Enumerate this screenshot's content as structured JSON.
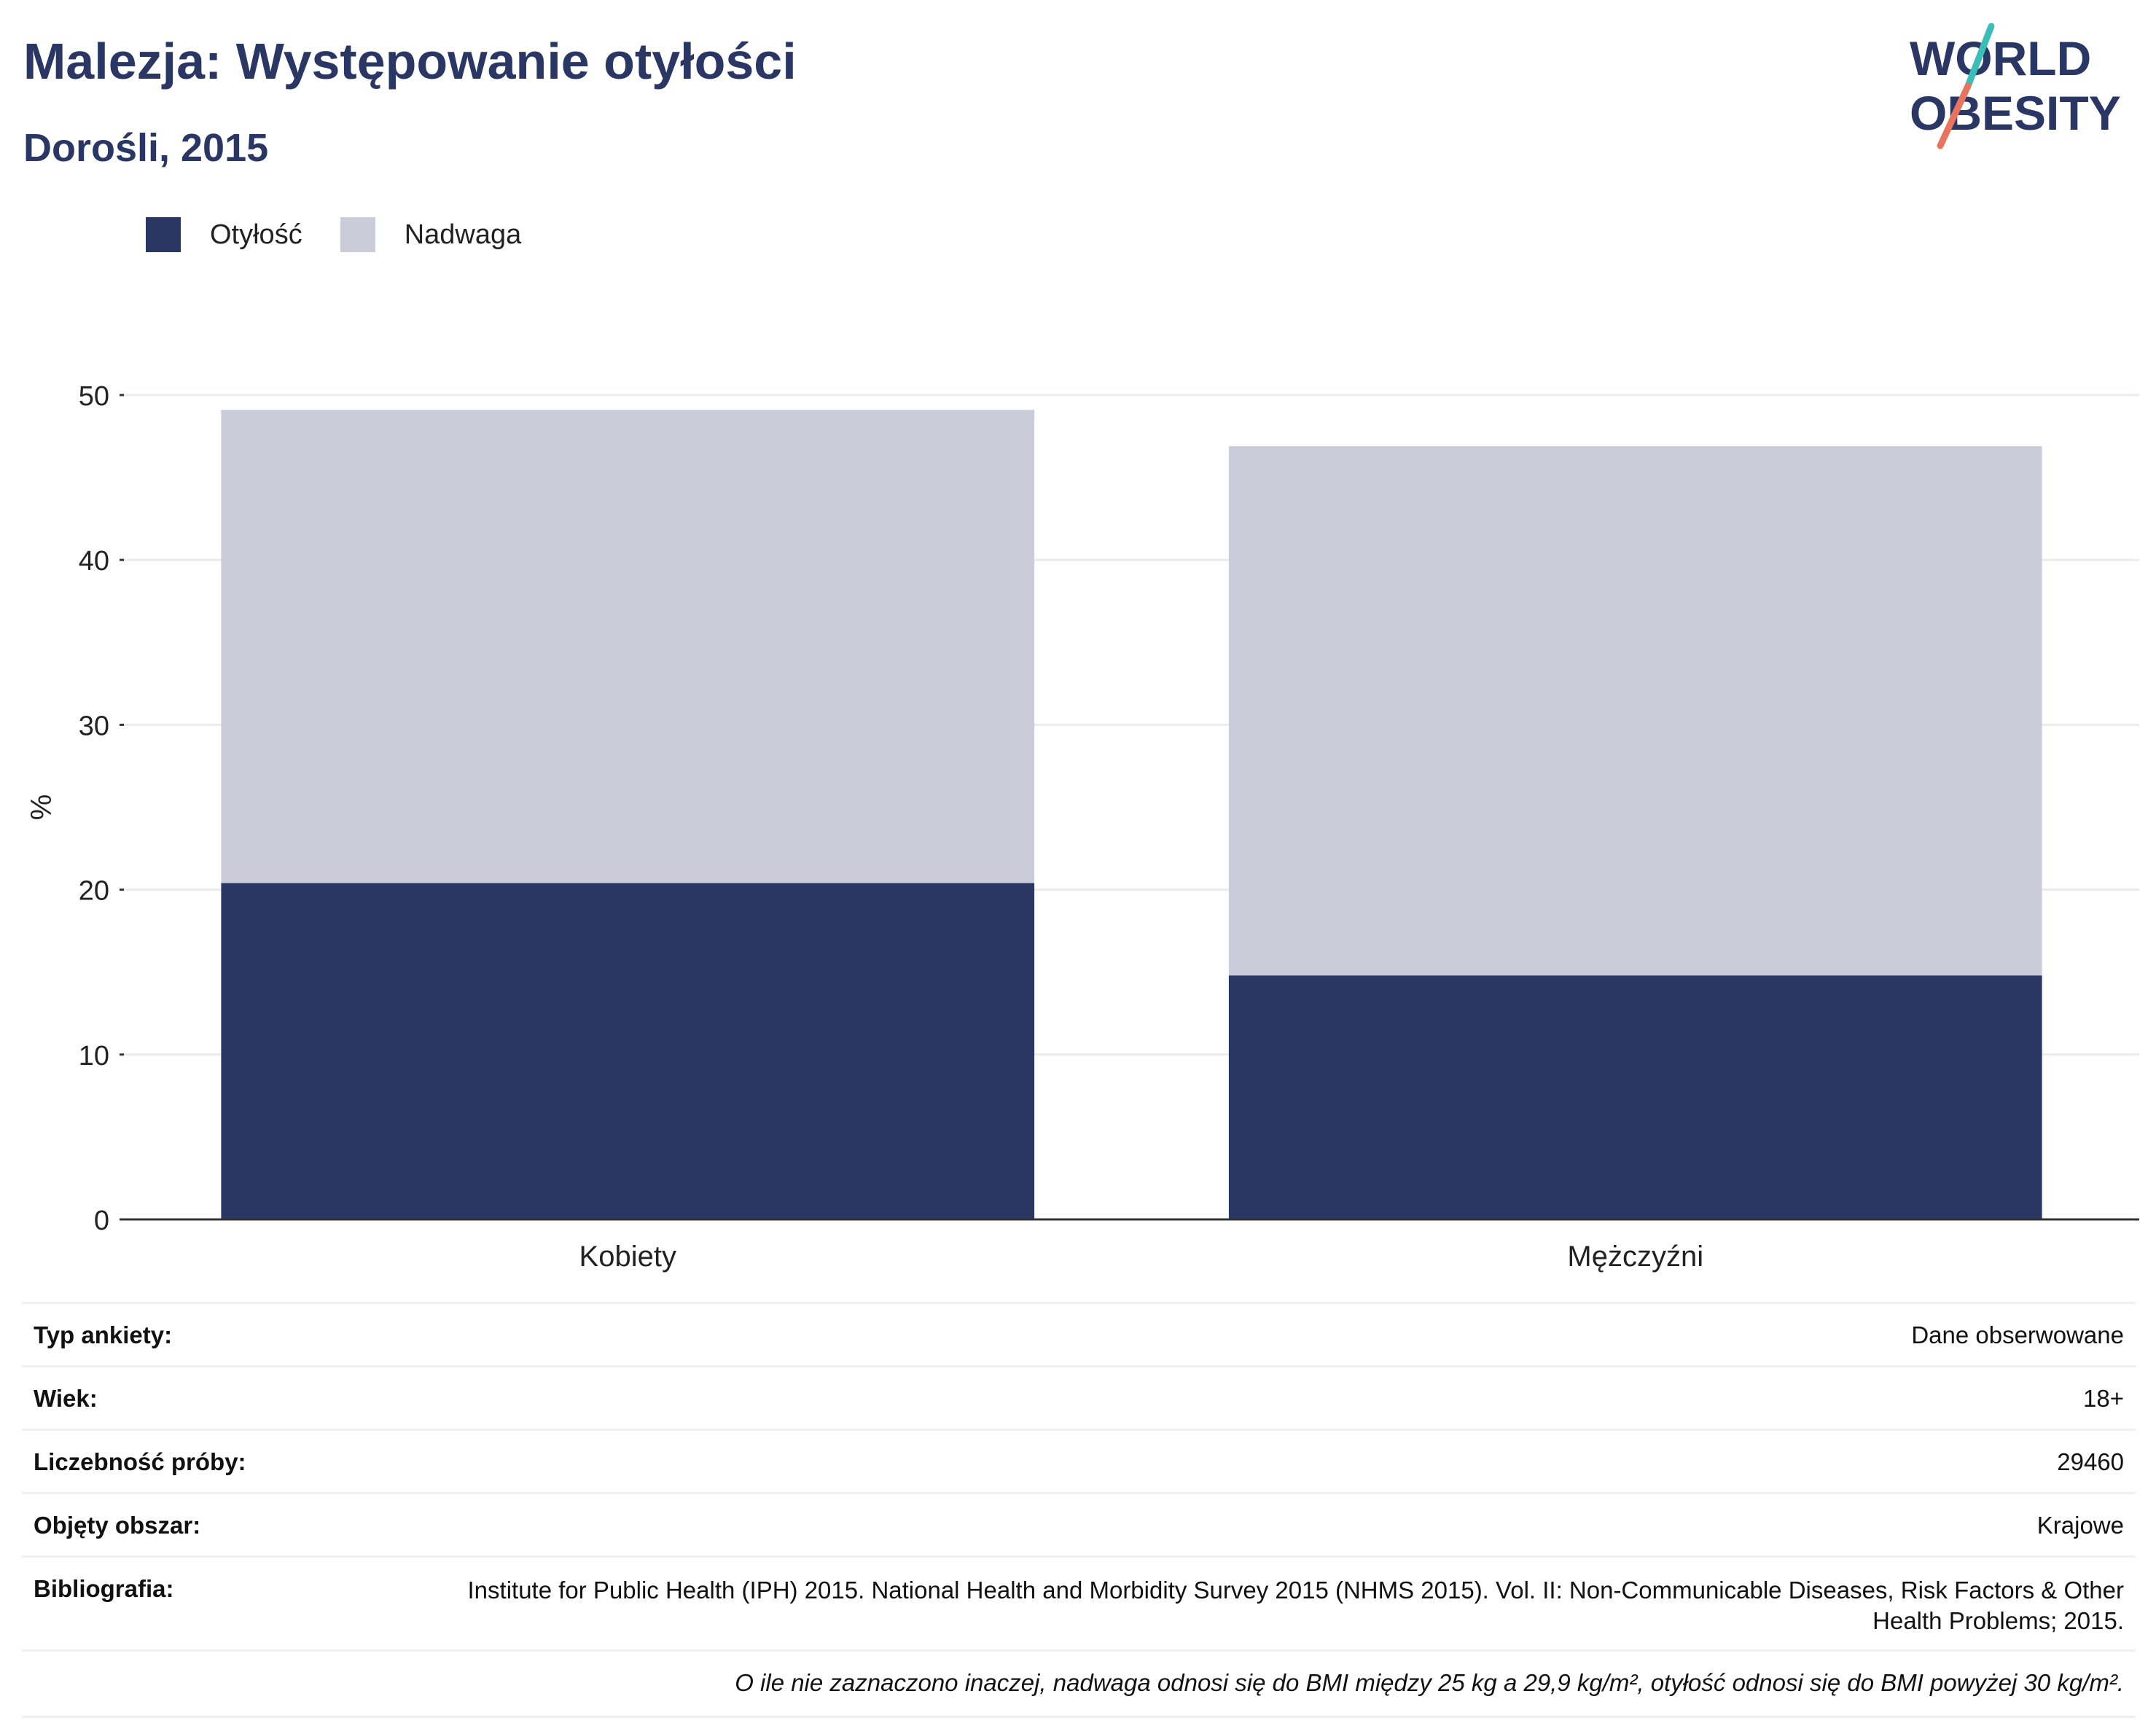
{
  "title": "Malezja: Występowanie otyłości",
  "subtitle": "Dorośli, 2015",
  "logo": {
    "line1": "WORLD",
    "line2": "OBESITY"
  },
  "legend": [
    {
      "label": "Otyłość",
      "color": "#2a3663"
    },
    {
      "label": "Nadwaga",
      "color": "#cacdd9"
    }
  ],
  "chart_data": {
    "type": "bar",
    "stacked": true,
    "categories": [
      "Kobiety",
      "Mężczyźni"
    ],
    "series": [
      {
        "name": "Otyłość",
        "color": "#2a3663",
        "values": [
          20.4,
          14.8
        ]
      },
      {
        "name": "Nadwaga",
        "color": "#cacdd9",
        "values": [
          28.7,
          32.1
        ]
      }
    ],
    "ylabel": "%",
    "ylim": [
      0,
      50
    ],
    "yticks": [
      0,
      10,
      20,
      30,
      40,
      50
    ],
    "grid": true,
    "legend_position": "top-left"
  },
  "meta": [
    {
      "key": "Typ ankiety:",
      "value": "Dane obserwowane"
    },
    {
      "key": "Wiek:",
      "value": "18+"
    },
    {
      "key": "Liczebność próby:",
      "value": "29460"
    },
    {
      "key": "Objęty obszar:",
      "value": "Krajowe"
    },
    {
      "key": "Bibliografia:",
      "value": "Institute for Public Health (IPH) 2015. National Health and Morbidity Survey 2015 (NHMS 2015). Vol. II: Non-Communicable Diseases, Risk Factors & Other Health Problems; 2015."
    }
  ],
  "note": "O ile nie zaznaczono inaczej, nadwaga odnosi się do BMI między 25 kg a 29,9 kg/m², otyłość odnosi się do BMI powyżej 30 kg/m²."
}
